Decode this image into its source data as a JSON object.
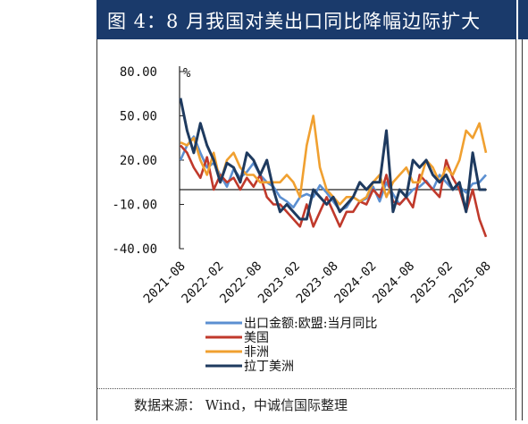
{
  "title": "图 4：8 月我国对美出口同比降幅边际扩大",
  "source": "数据来源：  Wind，中诚信国际整理",
  "colors": {
    "title_bg": "#1a3a6b"
  },
  "chart_data": {
    "type": "line",
    "ylabel": "%",
    "ylim": [
      -40,
      80
    ],
    "yticks": [
      "80.00",
      "50.00",
      "20.00",
      "-10.00",
      "-40.00"
    ],
    "ytick_values": [
      80,
      50,
      20,
      -10,
      -40
    ],
    "xticks": [
      "2021-08",
      "2022-02",
      "2022-08",
      "2023-02",
      "2023-08",
      "2024-02",
      "2024-08",
      "2025-02",
      "2025-08"
    ],
    "legend_position": "bottom",
    "series": [
      {
        "name": "出口金额:欧盟:当月同比",
        "color": "#5b8fd1",
        "values": [
          20,
          30,
          36,
          25,
          15,
          18,
          10,
          2,
          14,
          8,
          12,
          18,
          10,
          5,
          2,
          -5,
          -8,
          -12,
          -5,
          -3,
          -5,
          3,
          -2,
          -8,
          -14,
          -12,
          -5,
          -8,
          -6,
          2,
          -8,
          5,
          -3,
          -10,
          -5,
          0,
          2,
          6,
          0,
          10,
          5,
          0,
          2,
          -2,
          4,
          5,
          10
        ]
      },
      {
        "name": "美国",
        "color": "#c0392b",
        "values": [
          30,
          25,
          15,
          8,
          22,
          0,
          10,
          5,
          8,
          0,
          8,
          2,
          10,
          -5,
          -10,
          -10,
          -15,
          -20,
          -25,
          -10,
          -25,
          -15,
          -5,
          -15,
          -25,
          -15,
          -15,
          -8,
          -10,
          0,
          -5,
          10,
          -8,
          -10,
          -5,
          -12,
          10,
          5,
          0,
          -5,
          20,
          8,
          0,
          -15,
          0,
          -20,
          -32
        ]
      },
      {
        "name": "非洲",
        "color": "#f0a030",
        "values": [
          32,
          30,
          35,
          20,
          10,
          25,
          5,
          20,
          25,
          15,
          10,
          10,
          5,
          5,
          5,
          5,
          10,
          5,
          -5,
          30,
          50,
          15,
          0,
          -5,
          -10,
          -5,
          -5,
          -8,
          -5,
          5,
          10,
          -5,
          5,
          10,
          15,
          5,
          5,
          20,
          15,
          5,
          15,
          10,
          20,
          40,
          35,
          45,
          25
        ]
      },
      {
        "name": "拉丁美洲",
        "color": "#1e3a5f",
        "values": [
          62,
          40,
          25,
          45,
          30,
          20,
          5,
          18,
          15,
          5,
          25,
          20,
          10,
          20,
          0,
          -15,
          -10,
          -15,
          -20,
          -20,
          0,
          -5,
          -10,
          -5,
          -15,
          -10,
          -5,
          5,
          0,
          5,
          5,
          40,
          -15,
          0,
          -5,
          20,
          15,
          20,
          10,
          5,
          10,
          0,
          5,
          -15,
          25,
          0,
          0
        ]
      }
    ]
  }
}
